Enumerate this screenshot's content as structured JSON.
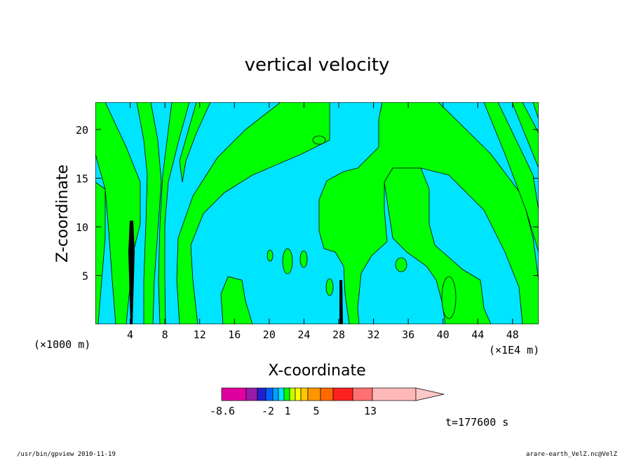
{
  "chart_data": {
    "type": "heatmap",
    "title": "vertical velocity",
    "xlabel": "X-coordinate",
    "ylabel": "Z-coordinate",
    "x_units": "(×1E4 m)",
    "y_units": "(×1000 m)",
    "xlim": [
      0,
      51
    ],
    "ylim": [
      0,
      22.8
    ],
    "x_ticks": [
      4,
      8,
      12,
      16,
      20,
      24,
      28,
      32,
      36,
      40,
      44,
      48
    ],
    "y_ticks": [
      5,
      10,
      15,
      20
    ],
    "grid": false,
    "fill_levels_visible": {
      "negative_small": "#00e5ff",
      "positive_small": "#00ff00"
    },
    "colorbar": {
      "colors": [
        "#e000a0",
        "#9a1aaa",
        "#2020d0",
        "#0060ff",
        "#00a0ff",
        "#00e5ff",
        "#00ff00",
        "#c8ff00",
        "#ffff00",
        "#ffc800",
        "#ff9600",
        "#ff6a00",
        "#ff2020",
        "#ff7070",
        "#ffb8b8",
        "#ffc8c8"
      ],
      "labels": [
        "-8.6",
        "-2",
        "1",
        "5",
        "13"
      ]
    },
    "time_label": "t=177600 s"
  },
  "footer": {
    "left": "/usr/bin/gpview  2010-11-19",
    "right": "arare-earth_VelZ.nc@VelZ"
  }
}
